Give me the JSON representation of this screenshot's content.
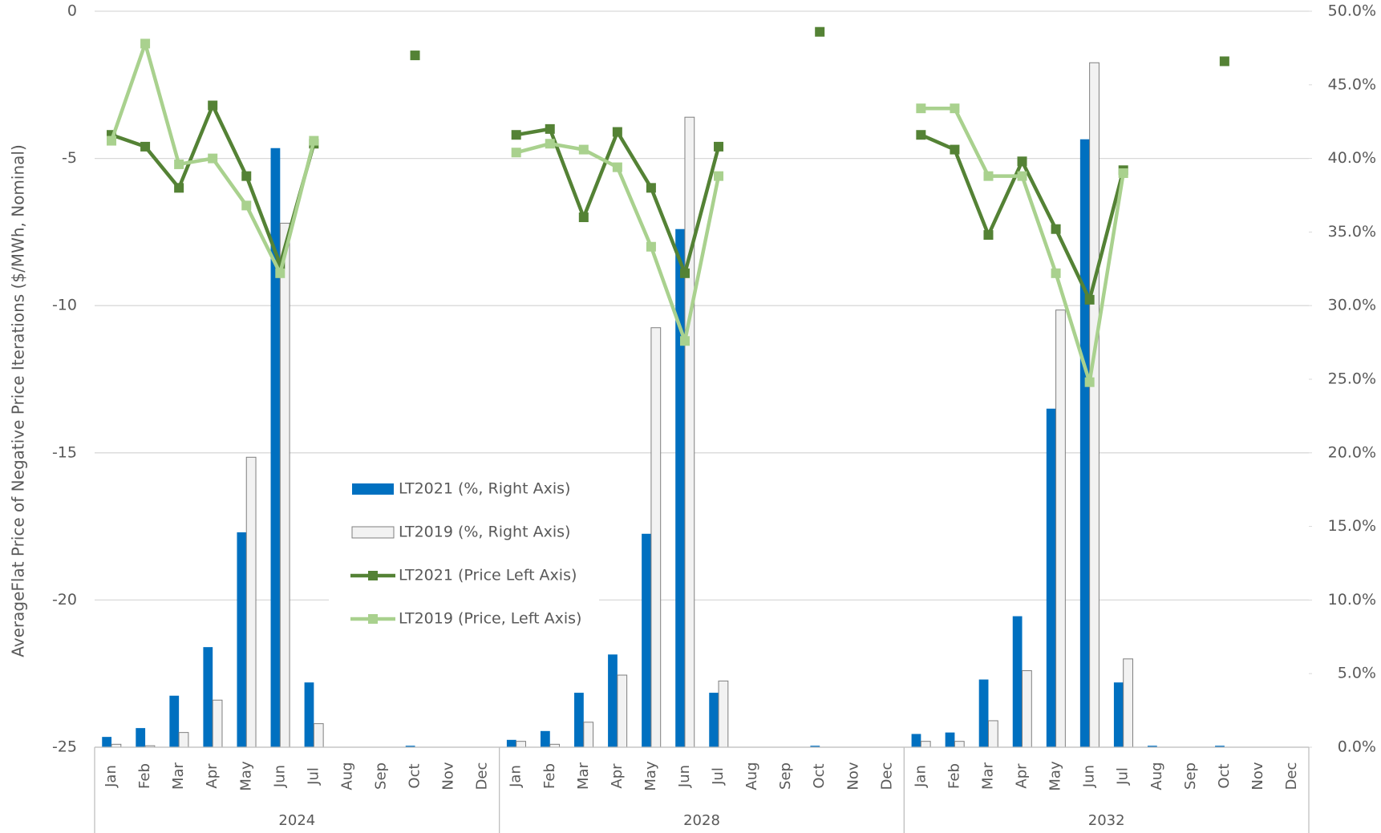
{
  "chart_data": {
    "type": "combo",
    "y_label": "AverageFlat  Price of Negative Price Iterations ($/MWh, Nominal)",
    "categories": [
      "Jan",
      "Feb",
      "Mar",
      "Apr",
      "May",
      "Jun",
      "Jul",
      "Aug",
      "Sep",
      "Oct",
      "Nov",
      "Dec",
      "Jan",
      "Feb",
      "Mar",
      "Apr",
      "May",
      "Jun",
      "Jul",
      "Aug",
      "Sep",
      "Oct",
      "Nov",
      "Dec",
      "Jan",
      "Feb",
      "Mar",
      "Apr",
      "May",
      "Jun",
      "Jul",
      "Aug",
      "Sep",
      "Oct",
      "Nov",
      "Dec"
    ],
    "groups": [
      "2024",
      "2028",
      "2032"
    ],
    "ylim": [
      -25,
      0
    ],
    "yticks": [
      -25,
      -20,
      -15,
      -10,
      -5,
      0
    ],
    "y2lim": [
      0,
      50
    ],
    "y2ticks": [
      {
        "value": 0,
        "label": "0.0%"
      },
      {
        "value": 5,
        "label": "5.0%"
      },
      {
        "value": 10,
        "label": "10.0%"
      },
      {
        "value": 15,
        "label": "15.0%"
      },
      {
        "value": 20,
        "label": "20.0%"
      },
      {
        "value": 25,
        "label": "25.0%"
      },
      {
        "value": 30,
        "label": "30.0%"
      },
      {
        "value": 35,
        "label": "35.0%"
      },
      {
        "value": 40,
        "label": "40.0%"
      },
      {
        "value": 45,
        "label": "45.0%"
      },
      {
        "value": 50,
        "label": "50.0%"
      }
    ],
    "grid": true,
    "series": [
      {
        "name": "LT2021 (%, Right Axis)",
        "type": "bar",
        "axis": "y2",
        "color": "#0070c0",
        "values": [
          0.7,
          1.3,
          3.5,
          6.8,
          14.6,
          40.7,
          4.4,
          null,
          null,
          0.1,
          null,
          null,
          0.5,
          1.1,
          3.7,
          6.3,
          14.5,
          35.2,
          3.7,
          null,
          null,
          0.1,
          null,
          null,
          0.9,
          1.0,
          4.6,
          8.9,
          23.0,
          41.3,
          4.4,
          0.1,
          null,
          0.1,
          null,
          null
        ]
      },
      {
        "name": "LT2019 (%, Right Axis)",
        "type": "bar",
        "axis": "y2",
        "color": "#f2f2f2",
        "edgecolor": "#7f7f7f",
        "values": [
          0.2,
          0.1,
          1.0,
          3.2,
          19.7,
          35.6,
          1.6,
          null,
          null,
          null,
          null,
          null,
          0.4,
          0.2,
          1.7,
          4.9,
          28.5,
          42.8,
          4.5,
          null,
          null,
          null,
          null,
          null,
          0.4,
          0.4,
          1.8,
          5.2,
          29.7,
          46.5,
          6.0,
          null,
          null,
          null,
          null,
          null
        ]
      },
      {
        "name": "LT2021 (Price Left Axis)",
        "type": "line",
        "color": "#548235",
        "values": [
          -4.2,
          -4.6,
          -6.0,
          -3.2,
          -5.6,
          -8.6,
          -4.5,
          null,
          null,
          -1.5,
          null,
          null,
          -4.2,
          -4.0,
          -7.0,
          -4.1,
          -6.0,
          -8.9,
          -4.6,
          null,
          null,
          -0.7,
          null,
          null,
          -4.2,
          -4.7,
          -7.6,
          -5.1,
          -7.4,
          -9.8,
          -5.4,
          null,
          null,
          -1.7,
          null,
          null
        ]
      },
      {
        "name": "LT2019 (Price, Left Axis)",
        "type": "line",
        "color": "#a9d18e",
        "values": [
          -4.4,
          -1.1,
          -5.2,
          -5.0,
          -6.6,
          -8.9,
          -4.4,
          null,
          null,
          null,
          null,
          null,
          -4.8,
          -4.5,
          -4.7,
          -5.3,
          -8.0,
          -11.2,
          -5.6,
          null,
          null,
          null,
          null,
          null,
          -3.3,
          -3.3,
          -5.6,
          -5.6,
          -8.9,
          -12.6,
          -5.5,
          null,
          null,
          null,
          null,
          null
        ]
      }
    ]
  }
}
